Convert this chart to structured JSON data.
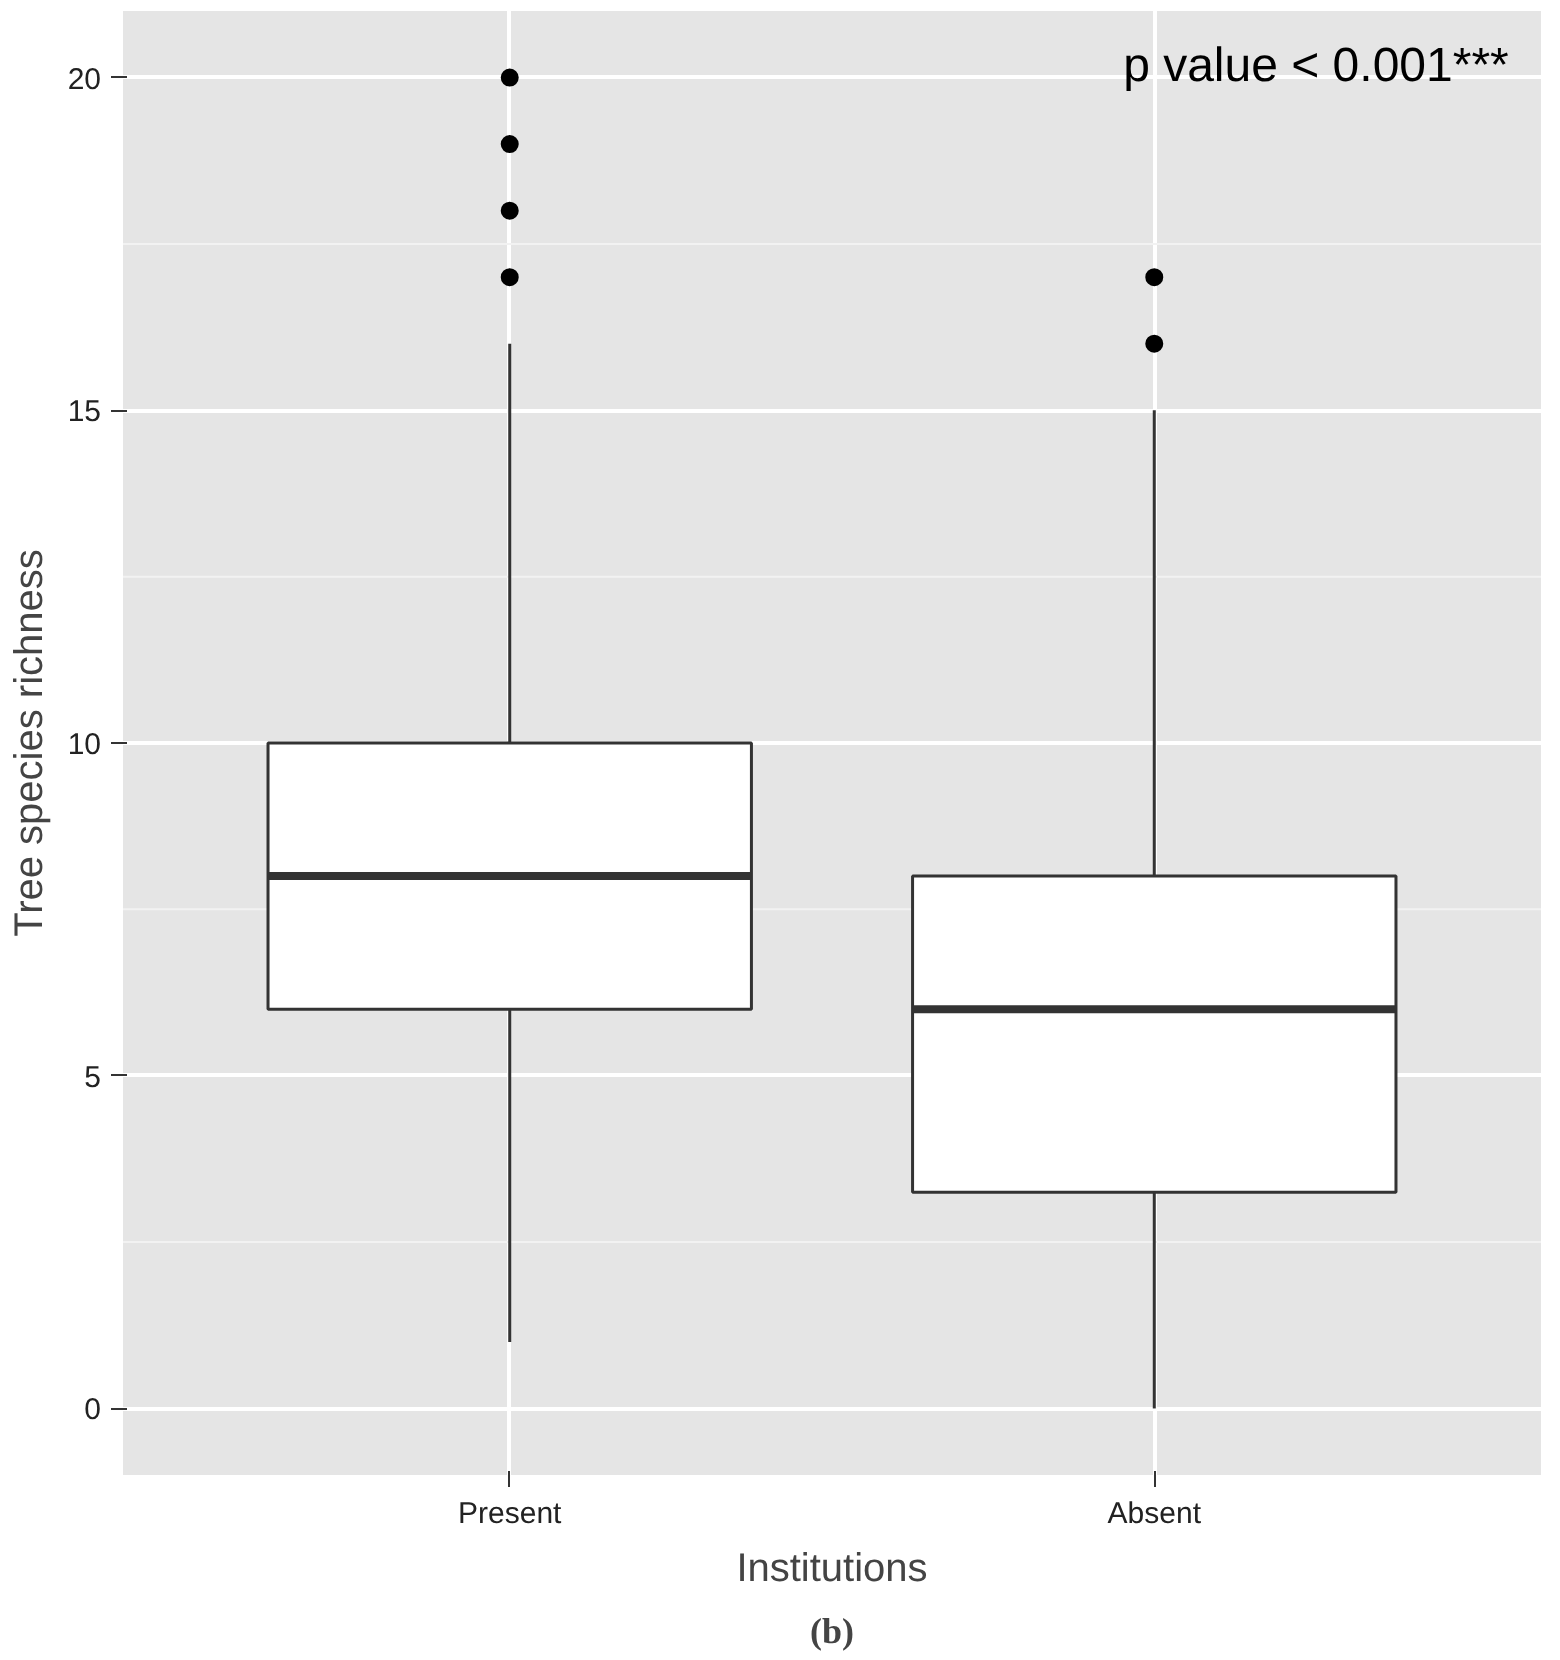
{
  "chart_data": {
    "type": "box",
    "xlabel": "Institutions",
    "ylabel": "Tree species richness",
    "categories": [
      "Present",
      "Absent"
    ],
    "boxes": [
      {
        "low": 1,
        "q1": 6,
        "median": 8,
        "q3": 10,
        "high": 16,
        "outliers": [
          17,
          18,
          19,
          20
        ]
      },
      {
        "low": 0,
        "q1": 3.25,
        "median": 6,
        "q3": 8,
        "high": 15,
        "outliers": [
          16,
          17
        ]
      }
    ],
    "ylim": [
      -1,
      21
    ],
    "yticks": [
      0,
      5,
      10,
      15,
      20
    ],
    "grid": true,
    "annotations": [
      "p value < 0.001***",
      "(b)"
    ]
  }
}
